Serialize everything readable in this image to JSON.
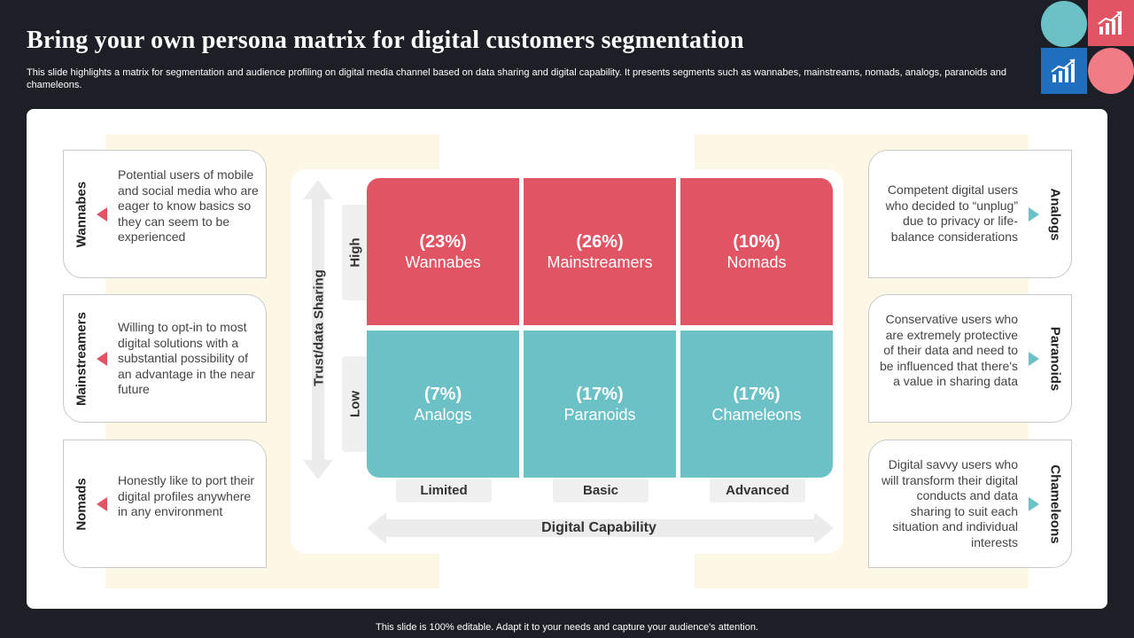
{
  "slide": {
    "title": "Bring your own persona matrix for digital customers segmentation",
    "subtitle": "This slide highlights a matrix for segmentation and audience profiling on digital media channel based on data sharing and digital capability. It presents segments such as wannabes, mainstreams, nomads, analogs, paranoids and chameleons.",
    "footer": "This slide is 100% editable. Adapt it to your needs and capture your audience's attention."
  },
  "colors": {
    "background": "#1c1f26",
    "red": "#e05464",
    "teal": "#6cc1c7",
    "blue": "#1f6fbf",
    "cream": "#fdf8e6"
  },
  "left_cards": [
    {
      "label": "Wannabes",
      "description": "Potential users of mobile and social media who are eager to know basics so they can seem to be experienced"
    },
    {
      "label": "Mainstreamers",
      "description": "Willing to opt-in to most digital solutions with a substantial possibility of an advantage in the near future"
    },
    {
      "label": "Nomads",
      "description": "Honestly like to port their digital profiles anywhere in any environment"
    }
  ],
  "right_cards": [
    {
      "label": "Analogs",
      "description": "Competent digital users who decided to “unplug” due to privacy or life-balance considerations"
    },
    {
      "label": "Paranoids",
      "description": "Conservative users who are extremely protective of their data and need to be influenced that there's a value in sharing data"
    },
    {
      "label": "Chameleons",
      "description": "Digital savvy users who will transform their digital conducts and data sharing to suit each situation and individual interests"
    }
  ],
  "matrix": {
    "y_axis_label": "Trust/data Sharing",
    "x_axis_label": "Digital Capability",
    "rows": [
      "High",
      "Low"
    ],
    "columns": [
      "Limited",
      "Basic",
      "Advanced"
    ],
    "cells": [
      {
        "pct": "(23%)",
        "name": "Wannabes"
      },
      {
        "pct": "(26%)",
        "name": "Mainstreamers"
      },
      {
        "pct": "(10%)",
        "name": "Nomads"
      },
      {
        "pct": "(7%)",
        "name": "Analogs"
      },
      {
        "pct": "(17%)",
        "name": "Paranoids"
      },
      {
        "pct": "(17%)",
        "name": "Chameleons"
      }
    ]
  },
  "icons": {
    "deco_top_right": "chart-growth-icon",
    "deco_blue": "chart-growth-icon"
  }
}
